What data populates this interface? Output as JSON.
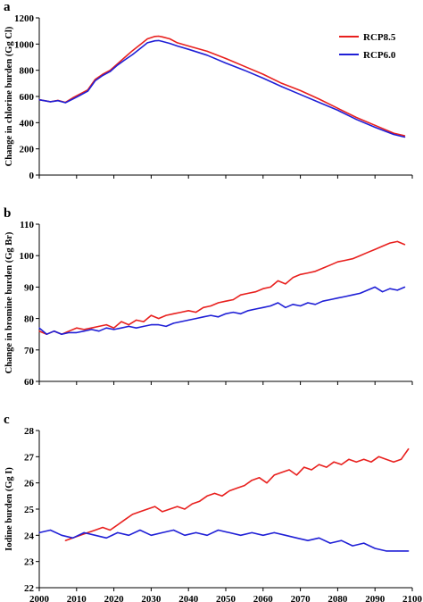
{
  "chart_data": [
    {
      "type": "line",
      "panel_label": "a",
      "title": "",
      "xlabel": "",
      "ylabel": "Change in chlorine burden (Gg Cl)",
      "xlim": [
        2000,
        2100
      ],
      "ylim": [
        0,
        1200
      ],
      "yticks": [
        0,
        200,
        400,
        600,
        800,
        1000,
        1200
      ],
      "grid": false,
      "legend": "top-right",
      "series": [
        {
          "name": "RCP8.5",
          "color": "#e8201e",
          "x": [
            2000,
            2003,
            2005,
            2007,
            2009,
            2011,
            2013,
            2015,
            2017,
            2019,
            2021,
            2023,
            2025,
            2027,
            2029,
            2031,
            2032,
            2033,
            2035,
            2037,
            2040,
            2045,
            2050,
            2055,
            2060,
            2065,
            2070,
            2075,
            2080,
            2085,
            2090,
            2095,
            2098
          ],
          "values": [
            575,
            560,
            570,
            555,
            590,
            620,
            650,
            730,
            770,
            800,
            850,
            900,
            950,
            995,
            1040,
            1058,
            1060,
            1055,
            1040,
            1010,
            985,
            945,
            890,
            830,
            770,
            700,
            645,
            580,
            510,
            440,
            380,
            320,
            300
          ]
        },
        {
          "name": "RCP6.0",
          "color": "#1f1fd6",
          "x": [
            2000,
            2003,
            2005,
            2007,
            2009,
            2011,
            2013,
            2015,
            2017,
            2019,
            2021,
            2023,
            2025,
            2027,
            2029,
            2031,
            2032,
            2033,
            2035,
            2037,
            2040,
            2045,
            2050,
            2055,
            2060,
            2065,
            2070,
            2075,
            2080,
            2085,
            2090,
            2095,
            2098
          ],
          "values": [
            575,
            560,
            568,
            552,
            580,
            610,
            640,
            720,
            760,
            790,
            840,
            880,
            920,
            965,
            1010,
            1025,
            1027,
            1020,
            1005,
            985,
            960,
            915,
            855,
            800,
            740,
            675,
            615,
            555,
            495,
            425,
            365,
            310,
            290
          ]
        }
      ]
    },
    {
      "type": "line",
      "panel_label": "b",
      "title": "",
      "xlabel": "",
      "ylabel": "Change in bromine burden (Gg Br)",
      "xlim": [
        2000,
        2100
      ],
      "ylim": [
        60,
        110
      ],
      "yticks": [
        60,
        70,
        80,
        90,
        100,
        110
      ],
      "grid": false,
      "series": [
        {
          "name": "RCP8.5",
          "color": "#e8201e",
          "x": [
            2000,
            2002,
            2004,
            2006,
            2008,
            2010,
            2012,
            2014,
            2016,
            2018,
            2020,
            2022,
            2024,
            2026,
            2028,
            2030,
            2032,
            2034,
            2036,
            2038,
            2040,
            2042,
            2044,
            2046,
            2048,
            2050,
            2052,
            2054,
            2056,
            2058,
            2060,
            2062,
            2064,
            2066,
            2068,
            2070,
            2072,
            2074,
            2076,
            2078,
            2080,
            2082,
            2084,
            2086,
            2088,
            2090,
            2092,
            2094,
            2096,
            2098
          ],
          "values": [
            76,
            75,
            76,
            75,
            76,
            77,
            76.5,
            77,
            77.5,
            78,
            77,
            79,
            78,
            79.5,
            79,
            81,
            80,
            81,
            81.5,
            82,
            82.5,
            82,
            83.5,
            84,
            85,
            85.5,
            86,
            87.5,
            88,
            88.5,
            89.5,
            90,
            92,
            91,
            93,
            94,
            94.5,
            95,
            96,
            97,
            98,
            98.5,
            99,
            100,
            101,
            102,
            103,
            104,
            104.5,
            103.5
          ]
        },
        {
          "name": "RCP6.0",
          "color": "#1f1fd6",
          "x": [
            2000,
            2002,
            2004,
            2006,
            2008,
            2010,
            2012,
            2014,
            2016,
            2018,
            2020,
            2022,
            2024,
            2026,
            2028,
            2030,
            2032,
            2034,
            2036,
            2038,
            2040,
            2042,
            2044,
            2046,
            2048,
            2050,
            2052,
            2054,
            2056,
            2058,
            2060,
            2062,
            2064,
            2066,
            2068,
            2070,
            2072,
            2074,
            2076,
            2078,
            2080,
            2082,
            2084,
            2086,
            2088,
            2090,
            2092,
            2094,
            2096,
            2098
          ],
          "values": [
            77,
            75,
            76,
            75,
            75.5,
            75.5,
            76,
            76.5,
            76,
            77,
            76.5,
            77,
            77.5,
            77,
            77.5,
            78,
            78,
            77.5,
            78.5,
            79,
            79.5,
            80,
            80.5,
            81,
            80.5,
            81.5,
            82,
            81.5,
            82.5,
            83,
            83.5,
            84,
            85,
            83.5,
            84.5,
            84,
            85,
            84.5,
            85.5,
            86,
            86.5,
            87,
            87.5,
            88,
            89,
            90,
            88.5,
            89.5,
            89,
            90
          ]
        }
      ]
    },
    {
      "type": "line",
      "panel_label": "c",
      "title": "",
      "xlabel": "",
      "ylabel": "Iodine burden (Gg I)",
      "xlim": [
        2000,
        2100
      ],
      "ylim": [
        22,
        28
      ],
      "yticks": [
        22,
        23,
        24,
        25,
        26,
        27,
        28
      ],
      "xticks": [
        2000,
        2010,
        2020,
        2030,
        2040,
        2050,
        2060,
        2070,
        2080,
        2090,
        2100
      ],
      "grid": false,
      "series": [
        {
          "name": "RCP8.5",
          "color": "#e8201e",
          "x": [
            2007,
            2009,
            2011,
            2013,
            2015,
            2017,
            2019,
            2021,
            2023,
            2025,
            2027,
            2029,
            2031,
            2033,
            2035,
            2037,
            2039,
            2041,
            2043,
            2045,
            2047,
            2049,
            2051,
            2053,
            2055,
            2057,
            2059,
            2061,
            2063,
            2065,
            2067,
            2069,
            2071,
            2073,
            2075,
            2077,
            2079,
            2081,
            2083,
            2085,
            2087,
            2089,
            2091,
            2093,
            2095,
            2097,
            2099
          ],
          "values": [
            23.8,
            23.9,
            24.0,
            24.1,
            24.2,
            24.3,
            24.2,
            24.4,
            24.6,
            24.8,
            24.9,
            25.0,
            25.1,
            24.9,
            25.0,
            25.1,
            25.0,
            25.2,
            25.3,
            25.5,
            25.6,
            25.5,
            25.7,
            25.8,
            25.9,
            26.1,
            26.2,
            26.0,
            26.3,
            26.4,
            26.5,
            26.3,
            26.6,
            26.5,
            26.7,
            26.6,
            26.8,
            26.7,
            26.9,
            26.8,
            26.9,
            26.8,
            27.0,
            26.9,
            26.8,
            26.9,
            27.3
          ]
        },
        {
          "name": "RCP6.0",
          "color": "#1f1fd6",
          "x": [
            2000,
            2003,
            2006,
            2009,
            2012,
            2015,
            2018,
            2021,
            2024,
            2027,
            2030,
            2033,
            2036,
            2039,
            2042,
            2045,
            2048,
            2051,
            2054,
            2057,
            2060,
            2063,
            2066,
            2069,
            2072,
            2075,
            2078,
            2081,
            2084,
            2087,
            2090,
            2093,
            2096,
            2099
          ],
          "values": [
            24.1,
            24.2,
            24.0,
            23.9,
            24.1,
            24.0,
            23.9,
            24.1,
            24.0,
            24.2,
            24.0,
            24.1,
            24.2,
            24.0,
            24.1,
            24.0,
            24.2,
            24.1,
            24.0,
            24.1,
            24.0,
            24.1,
            24.0,
            23.9,
            23.8,
            23.9,
            23.7,
            23.8,
            23.6,
            23.7,
            23.5,
            23.4,
            23.4,
            23.4
          ]
        }
      ]
    }
  ]
}
